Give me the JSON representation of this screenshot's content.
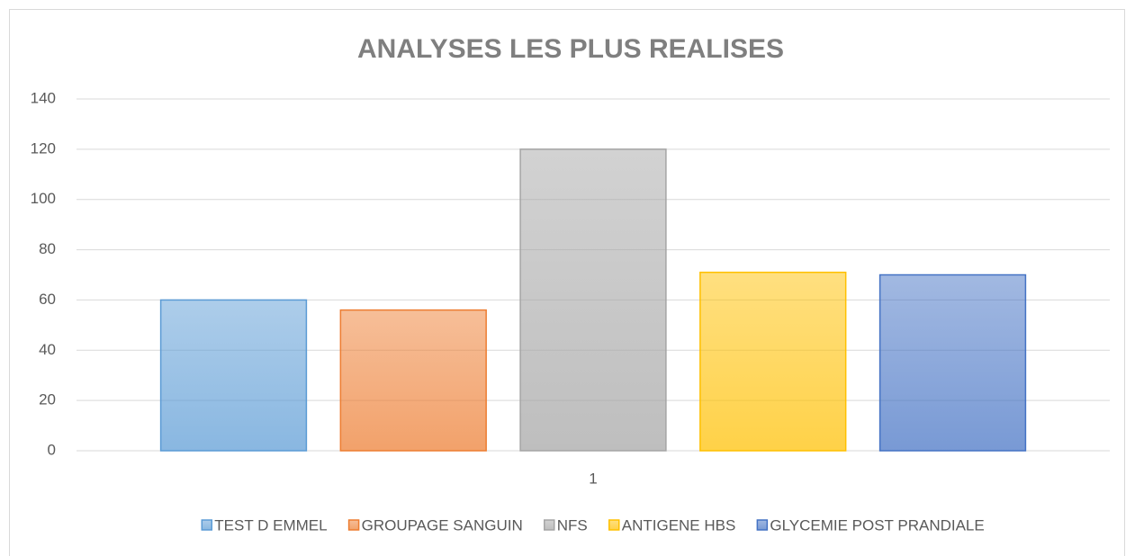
{
  "chart_data": {
    "type": "bar",
    "title": "ANALYSES LES PLUS REALISES",
    "categories": [
      "1"
    ],
    "series": [
      {
        "name": "TEST D EMMEL",
        "color": "#5b9bd5",
        "values": [
          60
        ]
      },
      {
        "name": "GROUPAGE SANGUIN",
        "color": "#ed7d31",
        "values": [
          56
        ]
      },
      {
        "name": "NFS",
        "color": "#a5a5a5",
        "values": [
          120
        ]
      },
      {
        "name": "ANTIGENE HBS",
        "color": "#ffc000",
        "values": [
          71
        ]
      },
      {
        "name": "GLYCEMIE POST PRANDIALE",
        "color": "#4472c4",
        "values": [
          70
        ]
      }
    ],
    "ylim": [
      0,
      140
    ],
    "yticks": [
      0,
      20,
      40,
      60,
      80,
      100,
      120,
      140
    ],
    "grid": true,
    "legend": "bottom"
  }
}
